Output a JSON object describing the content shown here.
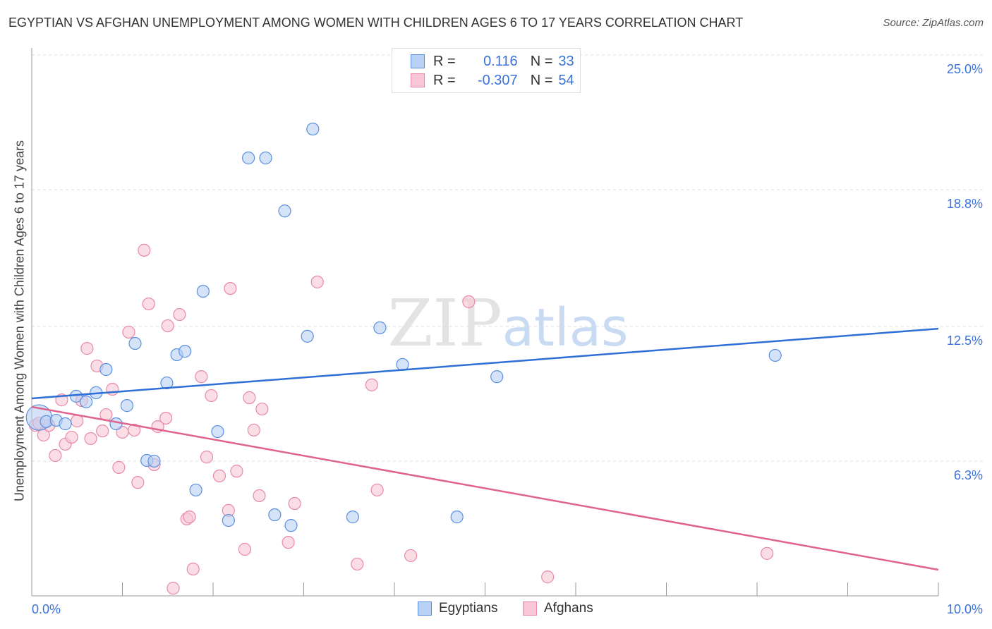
{
  "chart_data": {
    "type": "scatter",
    "title": "EGYPTIAN VS AFGHAN UNEMPLOYMENT AMONG WOMEN WITH CHILDREN AGES 6 TO 17 YEARS CORRELATION CHART",
    "source": "Source: ZipAtlas.com",
    "xlabel": "",
    "ylabel": "Unemployment Among Women with Children Ages 6 to 17 years",
    "xlim": [
      0,
      10
    ],
    "ylim": [
      0,
      25
    ],
    "x_tick_labels": {
      "left": "0.0%",
      "right": "10.0%"
    },
    "y_ticks": [
      25.0,
      18.8,
      12.5,
      6.3
    ],
    "y_tick_labels": [
      "25.0%",
      "18.8%",
      "12.5%",
      "6.3%"
    ],
    "grid": true,
    "watermark": "ZIPatlas",
    "legend_placement": "top-center",
    "series": [
      {
        "name": "Egyptians",
        "color": "#5b8fe0",
        "fill": "#b9d1f5",
        "line_color": "#2d6fd6",
        "r_label": "R =",
        "r_value": "0.116",
        "n_label": "N =",
        "n_value": "33",
        "trend": [
          [
            0,
            9.19
          ],
          [
            10,
            12.4
          ]
        ],
        "points": [
          [
            0.08,
            8.31
          ],
          [
            0.16,
            8.12
          ],
          [
            0.27,
            8.18
          ],
          [
            0.37,
            8.02
          ],
          [
            0.49,
            9.29
          ],
          [
            0.6,
            9.03
          ],
          [
            0.71,
            9.45
          ],
          [
            0.82,
            10.52
          ],
          [
            0.93,
            8.02
          ],
          [
            1.05,
            8.86
          ],
          [
            1.14,
            11.72
          ],
          [
            1.27,
            6.33
          ],
          [
            1.35,
            6.3
          ],
          [
            1.49,
            9.9
          ],
          [
            1.6,
            11.2
          ],
          [
            1.69,
            11.36
          ],
          [
            1.81,
            4.97
          ],
          [
            1.89,
            14.12
          ],
          [
            2.05,
            7.66
          ],
          [
            2.17,
            3.57
          ],
          [
            2.39,
            20.26
          ],
          [
            2.58,
            20.26
          ],
          [
            2.68,
            3.83
          ],
          [
            2.79,
            17.82
          ],
          [
            2.86,
            3.34
          ],
          [
            3.04,
            12.05
          ],
          [
            3.1,
            21.59
          ],
          [
            3.54,
            3.73
          ],
          [
            3.84,
            12.44
          ],
          [
            4.09,
            10.75
          ],
          [
            4.69,
            3.73
          ],
          [
            5.13,
            10.19
          ],
          [
            8.2,
            11.17
          ]
        ]
      },
      {
        "name": "Afghans",
        "color": "#e889a8",
        "fill": "#f8c6d6",
        "line_color": "#e0638e",
        "r_label": "R =",
        "r_value": "-0.307",
        "n_label": "N =",
        "n_value": "54",
        "trend": [
          [
            0,
            8.8
          ],
          [
            10,
            1.3
          ]
        ],
        "points": [
          [
            0.04,
            7.95
          ],
          [
            0.08,
            8.05
          ],
          [
            0.13,
            7.5
          ],
          [
            0.19,
            7.95
          ],
          [
            0.26,
            6.56
          ],
          [
            0.33,
            9.12
          ],
          [
            0.37,
            7.08
          ],
          [
            0.44,
            7.4
          ],
          [
            0.5,
            8.15
          ],
          [
            0.55,
            9.09
          ],
          [
            0.61,
            11.49
          ],
          [
            0.65,
            7.34
          ],
          [
            0.72,
            10.68
          ],
          [
            0.78,
            7.69
          ],
          [
            0.82,
            8.44
          ],
          [
            0.89,
            9.61
          ],
          [
            0.96,
            6.01
          ],
          [
            1.0,
            7.63
          ],
          [
            1.07,
            12.24
          ],
          [
            1.13,
            7.73
          ],
          [
            1.17,
            5.32
          ],
          [
            1.24,
            16.01
          ],
          [
            1.29,
            13.54
          ],
          [
            1.35,
            6.14
          ],
          [
            1.39,
            7.89
          ],
          [
            1.48,
            8.28
          ],
          [
            1.5,
            12.53
          ],
          [
            1.56,
            0.45
          ],
          [
            1.63,
            13.05
          ],
          [
            1.71,
            3.64
          ],
          [
            1.74,
            3.73
          ],
          [
            1.78,
            1.33
          ],
          [
            1.87,
            10.19
          ],
          [
            1.93,
            6.49
          ],
          [
            1.98,
            9.32
          ],
          [
            2.07,
            5.62
          ],
          [
            2.17,
            4.03
          ],
          [
            2.19,
            14.25
          ],
          [
            2.26,
            5.84
          ],
          [
            2.35,
            2.24
          ],
          [
            2.4,
            9.22
          ],
          [
            2.45,
            7.73
          ],
          [
            2.51,
            4.71
          ],
          [
            2.54,
            8.7
          ],
          [
            2.83,
            2.56
          ],
          [
            2.9,
            4.35
          ],
          [
            3.15,
            14.55
          ],
          [
            3.59,
            1.56
          ],
          [
            3.75,
            9.81
          ],
          [
            3.81,
            4.97
          ],
          [
            4.18,
            1.95
          ],
          [
            4.82,
            13.64
          ],
          [
            5.69,
            0.97
          ],
          [
            8.11,
            2.05
          ]
        ]
      }
    ]
  }
}
